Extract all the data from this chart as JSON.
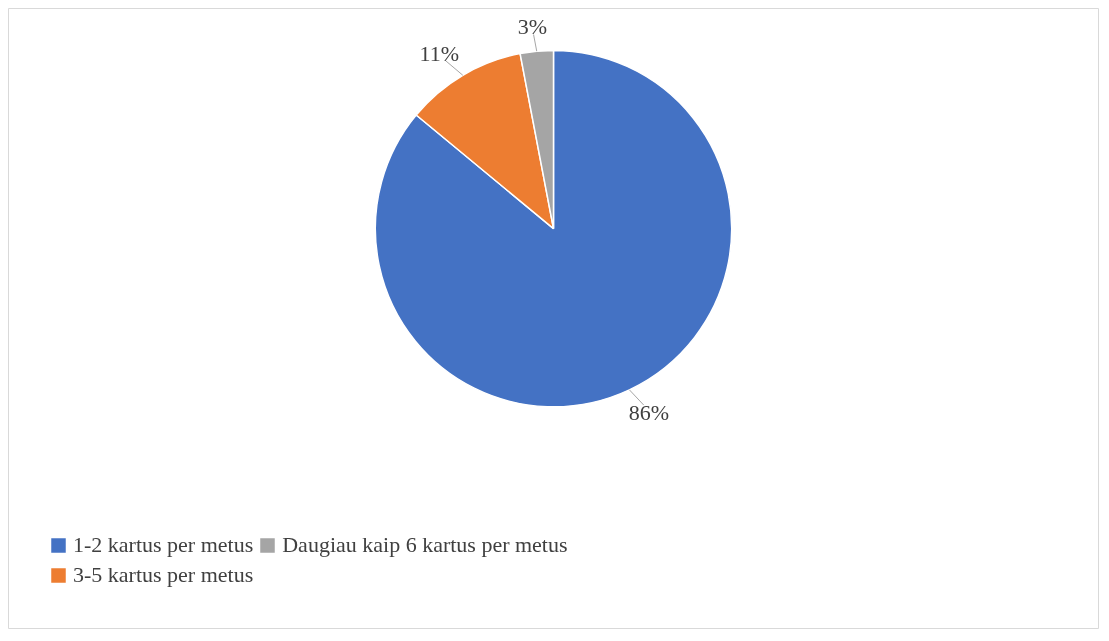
{
  "chart_data": {
    "type": "pie",
    "categories": [
      "1-2 kartus per metus",
      "3-5 kartus per metus",
      "Daugiau kaip 6 kartus per metus"
    ],
    "values": [
      86,
      11,
      3
    ],
    "colors": [
      "#4472c4",
      "#ed7d31",
      "#a5a5a5"
    ],
    "value_labels": [
      "86%",
      "11%",
      "3%"
    ],
    "legend": "bottom"
  }
}
